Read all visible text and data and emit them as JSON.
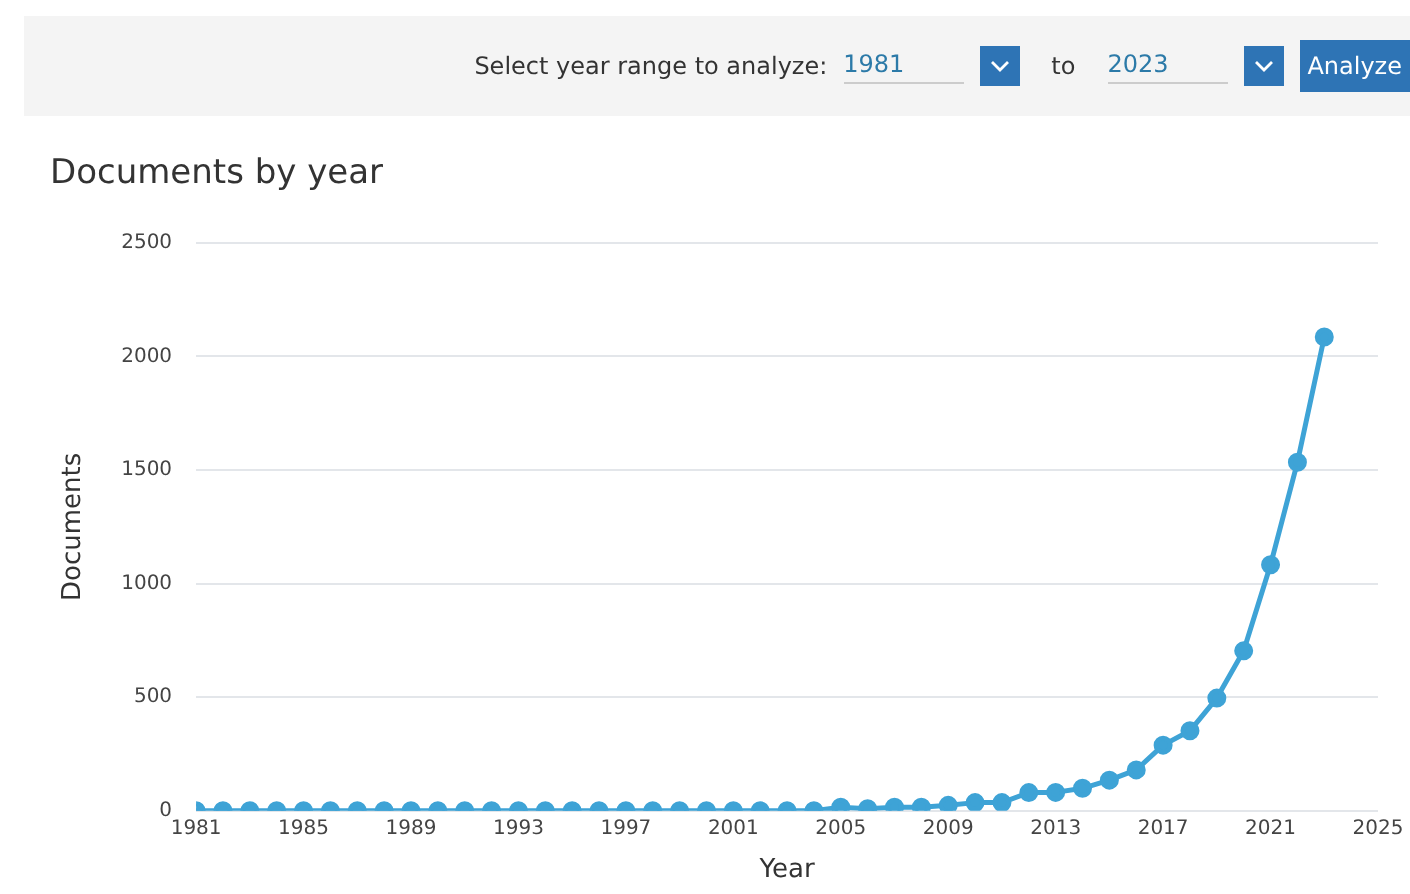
{
  "chart_data": {
    "type": "line",
    "title": "Documents by year",
    "xlabel": "Year",
    "ylabel": "Documents",
    "annotations": [
      "Select year range to analyze:",
      "1981",
      "to",
      "2023",
      "Analyze"
    ],
    "x": [
      1981,
      1982,
      1983,
      1984,
      1985,
      1986,
      1987,
      1988,
      1989,
      1990,
      1991,
      1992,
      1993,
      1994,
      1995,
      1996,
      1997,
      1998,
      1999,
      2000,
      2001,
      2002,
      2003,
      2004,
      2005,
      2006,
      2007,
      2008,
      2009,
      2010,
      2011,
      2012,
      2013,
      2014,
      2015,
      2016,
      2017,
      2018,
      2019,
      2020,
      2021,
      2022,
      2023
    ],
    "series": [
      {
        "color": "#3ea3d6",
        "values": [
          0,
          0,
          0,
          0,
          0,
          0,
          0,
          0,
          0,
          0,
          0,
          0,
          0,
          0,
          0,
          0,
          0,
          0,
          0,
          0,
          0,
          0,
          0,
          0,
          16,
          9,
          16,
          16,
          24,
          36,
          36,
          80,
          81,
          99,
          135,
          180,
          289,
          352,
          496,
          704,
          1083,
          1534,
          2085
        ]
      }
    ],
    "xlim": [
      1981,
      2025
    ],
    "xticks": [
      1981,
      1985,
      1989,
      1993,
      1997,
      2001,
      2005,
      2009,
      2013,
      2017,
      2021,
      2025
    ],
    "ylim": [
      0,
      2500
    ],
    "yticks": [
      0,
      500,
      1000,
      1500,
      2000,
      2500
    ],
    "grid": "y",
    "legend": false,
    "marker": "circle",
    "line_style": "solid"
  }
}
